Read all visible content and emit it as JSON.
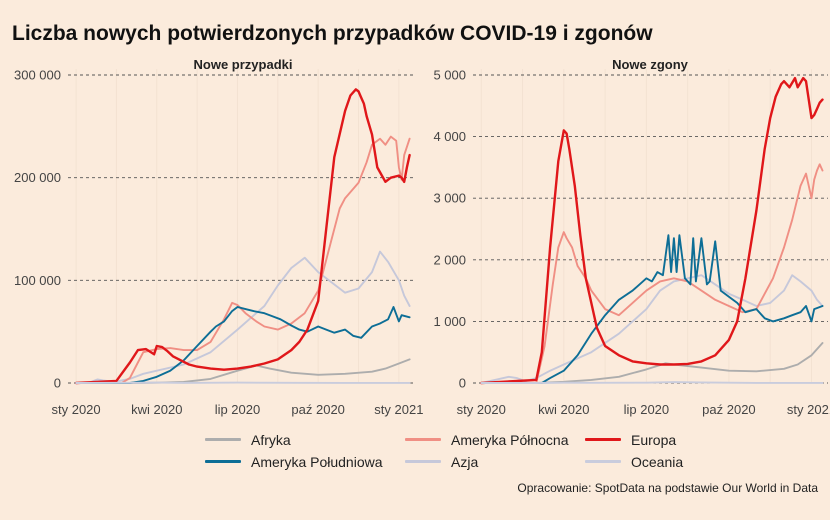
{
  "title": "Liczba nowych potwierdzonych przypadków COVID-19 i zgonów",
  "source": "Opracowanie: SpotData na podstawie Our World in Data",
  "x_ticks": [
    "sty 2020",
    "kwi 2020",
    "lip 2020",
    "paź 2020",
    "sty 2021"
  ],
  "legend": [
    {
      "name": "Afryka",
      "color": "#ADADAD"
    },
    {
      "name": "Ameryka Północna",
      "color": "#F08F84"
    },
    {
      "name": "Europa",
      "color": "#E0171A"
    },
    {
      "name": "Ameryka Południowa",
      "color": "#0D6E96"
    },
    {
      "name": "Azja",
      "color": "#C6C8DA"
    },
    {
      "name": "Oceania",
      "color": "#C9CCDD"
    }
  ],
  "chart_data": [
    {
      "type": "line",
      "title": "Nowe przypadki",
      "xlabel": "",
      "ylabel": "",
      "x_unit": "months since 2020-01",
      "ylim": [
        0,
        300000
      ],
      "y_ticks": [
        0,
        100000,
        200000,
        300000
      ],
      "y_tick_labels": [
        "0",
        "100 000",
        "200 000",
        "300 000"
      ],
      "xlim": [
        -0.3,
        12.6
      ],
      "grid": "horizontal dashed",
      "series": [
        {
          "name": "Afryka",
          "color": "#ADADAD",
          "x": [
            0,
            2,
            3,
            4,
            5,
            6,
            6.7,
            7.2,
            8,
            9,
            10,
            11,
            11.5,
            12,
            12.4
          ],
          "y": [
            0,
            0,
            300,
            1000,
            4000,
            12000,
            17000,
            14000,
            10000,
            8000,
            9000,
            11000,
            14000,
            19000,
            23000
          ]
        },
        {
          "name": "Azja",
          "color": "#C6C8DA",
          "x": [
            0,
            0.5,
            0.8,
            1,
            1.3,
            1.6,
            2,
            2.5,
            3,
            4,
            5,
            6,
            7,
            7.5,
            8,
            8.5,
            9,
            9.5,
            10,
            10.5,
            11,
            11.3,
            11.6,
            12,
            12.2,
            12.4
          ],
          "y": [
            0,
            500,
            3500,
            2500,
            1500,
            2000,
            4000,
            9000,
            12000,
            18000,
            30000,
            52000,
            75000,
            95000,
            112000,
            122000,
            108000,
            98000,
            88000,
            92000,
            108000,
            128000,
            118000,
            100000,
            85000,
            75000
          ]
        },
        {
          "name": "Ameryka Północna",
          "color": "#F08F84",
          "x": [
            0,
            1.7,
            2,
            2.3,
            2.5,
            3,
            3.5,
            4,
            4.5,
            5,
            5.5,
            5.8,
            6,
            6.3,
            6.7,
            7,
            7.5,
            8,
            8.5,
            9,
            9.5,
            9.8,
            10,
            10.5,
            10.8,
            11,
            11.3,
            11.5,
            11.7,
            11.9,
            12,
            12.1,
            12.2,
            12.4
          ],
          "y": [
            0,
            0,
            5000,
            20000,
            30000,
            33000,
            34000,
            32000,
            32000,
            40000,
            62000,
            78000,
            76000,
            68000,
            60000,
            55000,
            52000,
            58000,
            68000,
            90000,
            140000,
            170000,
            180000,
            195000,
            215000,
            232000,
            238000,
            232000,
            240000,
            236000,
            210000,
            198000,
            222000,
            238000
          ]
        },
        {
          "name": "Ameryka Południowa",
          "color": "#0D6E96",
          "x": [
            0,
            2,
            2.5,
            3,
            3.5,
            4,
            4.5,
            5,
            5.2,
            5.5,
            5.8,
            6,
            6.3,
            6.6,
            7,
            7.3,
            7.6,
            8,
            8.3,
            8.6,
            9,
            9.3,
            9.6,
            10,
            10.3,
            10.6,
            11,
            11.3,
            11.6,
            11.8,
            12,
            12.1,
            12.4
          ],
          "y": [
            0,
            0,
            2000,
            6000,
            12000,
            22000,
            36000,
            50000,
            55000,
            60000,
            70000,
            74000,
            72000,
            70000,
            68000,
            65000,
            62000,
            56000,
            52000,
            50000,
            55000,
            52000,
            49000,
            52000,
            46000,
            44000,
            55000,
            58000,
            62000,
            74000,
            60000,
            66000,
            64000
          ]
        },
        {
          "name": "Europa",
          "color": "#E0171A",
          "x": [
            0,
            1.5,
            2,
            2.3,
            2.6,
            2.9,
            3,
            3.2,
            3.4,
            3.6,
            3.9,
            4.2,
            4.5,
            5,
            5.5,
            6,
            6.5,
            7,
            7.5,
            8,
            8.3,
            8.6,
            9,
            9.3,
            9.6,
            10,
            10.2,
            10.4,
            10.5,
            10.6,
            10.7,
            10.8,
            11,
            11.2,
            11.5,
            11.7,
            12,
            12.1,
            12.2,
            12.3,
            12.4
          ],
          "y": [
            0,
            2000,
            20000,
            32000,
            33000,
            28000,
            36000,
            35000,
            31000,
            26000,
            22000,
            18000,
            16000,
            14000,
            13000,
            14000,
            16000,
            19000,
            23000,
            32000,
            40000,
            52000,
            80000,
            150000,
            220000,
            265000,
            280000,
            286000,
            284000,
            278000,
            272000,
            260000,
            242000,
            210000,
            196000,
            200000,
            202000,
            200000,
            196000,
            210000,
            222000
          ]
        },
        {
          "name": "Oceania",
          "color": "#C9CCDD",
          "x": [
            0,
            2,
            3,
            4,
            6,
            8,
            10,
            12.4
          ],
          "y": [
            0,
            200,
            400,
            100,
            400,
            200,
            100,
            100
          ]
        }
      ]
    },
    {
      "type": "line",
      "title": "Nowe zgony",
      "xlabel": "",
      "ylabel": "",
      "x_unit": "months since 2020-01",
      "ylim": [
        0,
        5000
      ],
      "y_ticks": [
        0,
        1000,
        2000,
        3000,
        4000,
        5000
      ],
      "y_tick_labels": [
        "0",
        "1 000",
        "2 000",
        "3 000",
        "4 000",
        "5 000"
      ],
      "xlim": [
        -0.3,
        12.6
      ],
      "grid": "horizontal dashed",
      "series": [
        {
          "name": "Afryka",
          "color": "#ADADAD",
          "x": [
            0,
            2,
            3,
            4,
            5,
            6,
            6.7,
            7,
            8,
            9,
            10,
            11,
            11.5,
            12,
            12.4
          ],
          "y": [
            0,
            0,
            20,
            50,
            100,
            220,
            320,
            300,
            250,
            200,
            190,
            230,
            300,
            450,
            650
          ]
        },
        {
          "name": "Azja",
          "color": "#C6C8DA",
          "x": [
            0,
            1,
            1.3,
            1.6,
            2,
            2.5,
            3,
            4,
            5,
            6,
            6.5,
            7,
            7.5,
            8,
            8.5,
            9,
            9.5,
            10,
            10.5,
            11,
            11.3,
            11.6,
            12,
            12.2,
            12.4
          ],
          "y": [
            0,
            100,
            80,
            30,
            80,
            200,
            300,
            500,
            800,
            1200,
            1500,
            1650,
            1700,
            1750,
            1600,
            1450,
            1350,
            1250,
            1300,
            1500,
            1750,
            1650,
            1500,
            1350,
            1250
          ]
        },
        {
          "name": "Ameryka Północna",
          "color": "#F08F84",
          "x": [
            0,
            2,
            2.3,
            2.6,
            2.8,
            3,
            3.1,
            3.3,
            3.5,
            3.8,
            4,
            4.5,
            5,
            5.5,
            6,
            6.5,
            7,
            7.5,
            8,
            8.5,
            9,
            9.5,
            10,
            10.3,
            10.6,
            11,
            11.3,
            11.6,
            11.8,
            12,
            12.1,
            12.2,
            12.3,
            12.4
          ],
          "y": [
            0,
            0,
            600,
            1600,
            2200,
            2450,
            2350,
            2200,
            1900,
            1700,
            1500,
            1200,
            1100,
            1300,
            1500,
            1650,
            1700,
            1650,
            1500,
            1350,
            1250,
            1150,
            1200,
            1450,
            1700,
            2200,
            2650,
            3200,
            3400,
            3000,
            3300,
            3450,
            3550,
            3450
          ]
        },
        {
          "name": "Ameryka Południowa",
          "color": "#0D6E96",
          "x": [
            0,
            2.2,
            2.5,
            3,
            3.5,
            4,
            4.5,
            5,
            5.5,
            6,
            6.2,
            6.4,
            6.6,
            6.8,
            6.9,
            7.0,
            7.1,
            7.2,
            7.4,
            7.6,
            7.7,
            7.8,
            8.0,
            8.2,
            8.3,
            8.5,
            8.7,
            9,
            9.3,
            9.6,
            10,
            10.3,
            10.6,
            11,
            11.3,
            11.6,
            11.8,
            12,
            12.1,
            12.4
          ],
          "y": [
            0,
            0,
            80,
            200,
            450,
            800,
            1100,
            1350,
            1500,
            1700,
            1650,
            1800,
            1750,
            2400,
            1800,
            2350,
            1800,
            2400,
            1700,
            1600,
            2350,
            1650,
            2350,
            1600,
            1650,
            2300,
            1500,
            1400,
            1300,
            1150,
            1200,
            1050,
            1000,
            1050,
            1100,
            1150,
            1250,
            1000,
            1200,
            1250
          ]
        },
        {
          "name": "Europa",
          "color": "#E0171A",
          "x": [
            0,
            2,
            2.2,
            2.5,
            2.8,
            3,
            3.1,
            3.2,
            3.4,
            3.6,
            3.8,
            4,
            4.2,
            4.5,
            5,
            5.5,
            6,
            6.5,
            7,
            7.5,
            8,
            8.5,
            9,
            9.3,
            9.6,
            10,
            10.3,
            10.5,
            10.7,
            10.9,
            11,
            11.2,
            11.4,
            11.5,
            11.7,
            11.8,
            12,
            12.1,
            12.2,
            12.3,
            12.4
          ],
          "y": [
            0,
            50,
            500,
            2200,
            3600,
            4100,
            4050,
            3800,
            3200,
            2400,
            1700,
            1300,
            900,
            600,
            450,
            350,
            320,
            300,
            300,
            310,
            350,
            450,
            700,
            1000,
            1700,
            2800,
            3800,
            4300,
            4650,
            4850,
            4900,
            4800,
            4950,
            4800,
            4950,
            4900,
            4300,
            4350,
            4450,
            4550,
            4600
          ]
        },
        {
          "name": "Oceania",
          "color": "#C9CCDD",
          "x": [
            0,
            2,
            3,
            4,
            6,
            7,
            8,
            10,
            12.4
          ],
          "y": [
            0,
            0,
            5,
            3,
            5,
            15,
            10,
            2,
            2
          ]
        }
      ]
    }
  ]
}
